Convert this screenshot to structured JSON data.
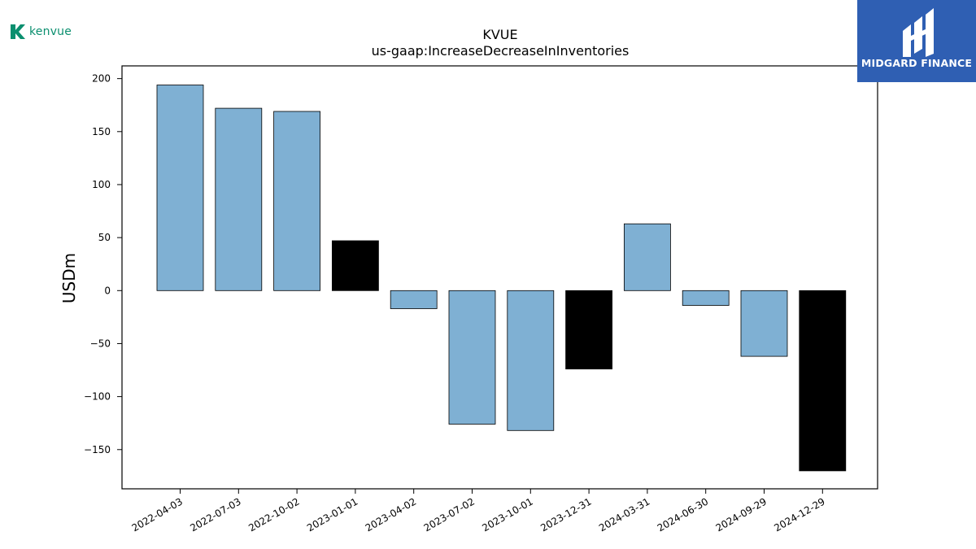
{
  "brand": {
    "logo_text": "kenvue",
    "colors": {
      "brand": "#0b8f6f"
    }
  },
  "watermark": {
    "text": "MIDGARD FINANCE",
    "colors": {
      "background": "#2f5fb3",
      "text": "#ffffff"
    }
  },
  "chart_data": {
    "type": "bar",
    "title": "KVUE",
    "subtitle": "us-gaap:IncreaseDecreaseInInventories",
    "xlabel": "",
    "ylabel": "USDm",
    "ylim": [
      -187,
      212
    ],
    "yticks": [
      200,
      150,
      100,
      50,
      0,
      -50,
      -100,
      -150
    ],
    "grid": false,
    "categories": [
      "2022-04-03",
      "2022-07-03",
      "2022-10-02",
      "2023-01-01",
      "2023-04-02",
      "2023-07-02",
      "2023-10-01",
      "2023-12-31",
      "2024-03-31",
      "2024-06-30",
      "2024-09-29",
      "2024-12-29"
    ],
    "values": [
      194,
      172,
      169,
      47,
      -17,
      -126,
      -132,
      -74,
      63,
      -14,
      -62,
      -170
    ],
    "bar_colors": [
      "#7fb0d3",
      "#7fb0d3",
      "#7fb0d3",
      "#000000",
      "#7fb0d3",
      "#7fb0d3",
      "#7fb0d3",
      "#000000",
      "#7fb0d3",
      "#7fb0d3",
      "#7fb0d3",
      "#000000"
    ]
  }
}
